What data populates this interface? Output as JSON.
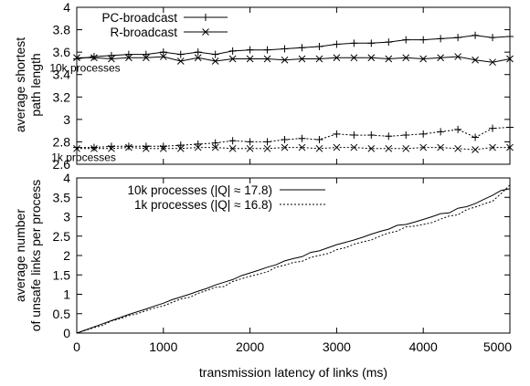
{
  "chart_data": [
    {
      "type": "line",
      "ylabel_lines": [
        "average shortest",
        "path length"
      ],
      "xlabel": "",
      "xlim": [
        0,
        5000
      ],
      "ylim": [
        2.6,
        4
      ],
      "yticks": [
        "4",
        "3.8",
        "3.6",
        "3.4",
        "3.2",
        "3",
        "2.8",
        "2.6"
      ],
      "ytick_values": [
        4,
        3.8,
        3.6,
        3.4,
        3.2,
        3,
        2.8,
        2.6
      ],
      "grid": false,
      "legend_position": "top-left",
      "legend": [
        {
          "label": "PC-broadcast",
          "marker": "plus",
          "style": "solid"
        },
        {
          "label": "R-broadcast",
          "marker": "cross",
          "style": "solid"
        }
      ],
      "annotations": [
        {
          "text": "10k processes",
          "x": 130,
          "y": 3.46
        },
        {
          "text": "1k processes",
          "x": 150,
          "y": 2.66
        }
      ],
      "x": [
        0,
        200,
        400,
        600,
        800,
        1000,
        1200,
        1400,
        1600,
        1800,
        2000,
        2200,
        2400,
        2600,
        2800,
        3000,
        3200,
        3400,
        3600,
        3800,
        4000,
        4200,
        4400,
        4600,
        4800,
        5000
      ],
      "series": [
        {
          "name": "PC-broadcast",
          "group": "10k processes",
          "marker": "plus",
          "dash": "solid",
          "values": [
            3.54,
            3.56,
            3.57,
            3.58,
            3.58,
            3.6,
            3.58,
            3.6,
            3.58,
            3.61,
            3.62,
            3.62,
            3.63,
            3.64,
            3.65,
            3.67,
            3.68,
            3.68,
            3.69,
            3.71,
            3.71,
            3.72,
            3.73,
            3.75,
            3.73,
            3.74
          ]
        },
        {
          "name": "R-broadcast",
          "group": "10k processes",
          "marker": "cross",
          "dash": "solid",
          "values": [
            3.55,
            3.55,
            3.54,
            3.55,
            3.55,
            3.56,
            3.52,
            3.55,
            3.52,
            3.54,
            3.54,
            3.54,
            3.53,
            3.54,
            3.54,
            3.55,
            3.55,
            3.55,
            3.54,
            3.55,
            3.54,
            3.55,
            3.56,
            3.53,
            3.51,
            3.54
          ]
        },
        {
          "name": "PC-broadcast",
          "group": "1k processes",
          "marker": "plus",
          "dash": "dotted",
          "values": [
            2.75,
            2.75,
            2.76,
            2.76,
            2.76,
            2.76,
            2.77,
            2.78,
            2.79,
            2.81,
            2.8,
            2.8,
            2.82,
            2.83,
            2.82,
            2.87,
            2.86,
            2.86,
            2.85,
            2.86,
            2.87,
            2.89,
            2.91,
            2.84,
            2.92,
            2.93
          ]
        },
        {
          "name": "R-broadcast",
          "group": "1k processes",
          "marker": "cross",
          "dash": "dotted",
          "values": [
            2.74,
            2.74,
            2.74,
            2.75,
            2.74,
            2.74,
            2.74,
            2.75,
            2.75,
            2.74,
            2.74,
            2.74,
            2.75,
            2.75,
            2.74,
            2.75,
            2.75,
            2.74,
            2.74,
            2.74,
            2.75,
            2.75,
            2.74,
            2.73,
            2.75,
            2.75
          ]
        }
      ]
    },
    {
      "type": "line",
      "ylabel_lines": [
        "average number",
        "of unsafe links per process"
      ],
      "xlabel": "transmission latency of links (ms)",
      "xlim": [
        0,
        5000
      ],
      "ylim": [
        0,
        4
      ],
      "xticks": [
        "0",
        "1000",
        "2000",
        "3000",
        "4000",
        "5000"
      ],
      "xtick_values": [
        0,
        1000,
        2000,
        3000,
        4000,
        5000
      ],
      "yticks": [
        "4",
        "3.5",
        "3",
        "2.5",
        "2",
        "1.5",
        "1",
        "0.5",
        "0"
      ],
      "ytick_values": [
        4,
        3.5,
        3,
        2.5,
        2,
        1.5,
        1,
        0.5,
        0
      ],
      "grid": false,
      "legend_position": "top-left",
      "legend": [
        {
          "label": "10k processes (|Q| ≈ 17.8)",
          "style": "solid"
        },
        {
          "label": "1k processes (|Q| ≈ 16.8)",
          "style": "dotted"
        }
      ],
      "x": [
        0,
        100,
        200,
        300,
        400,
        500,
        600,
        700,
        800,
        900,
        1000,
        1100,
        1200,
        1300,
        1400,
        1500,
        1600,
        1700,
        1800,
        1900,
        2000,
        2100,
        2200,
        2300,
        2400,
        2500,
        2600,
        2700,
        2800,
        2900,
        3000,
        3100,
        3200,
        3300,
        3400,
        3500,
        3600,
        3700,
        3800,
        3900,
        4000,
        4100,
        4200,
        4300,
        4400,
        4500,
        4600,
        4700,
        4800,
        4900,
        5000
      ],
      "series": [
        {
          "name": "10k processes (|Q| ≈ 17.8)",
          "dash": "solid",
          "values": [
            0.0,
            0.08,
            0.16,
            0.24,
            0.32,
            0.4,
            0.48,
            0.55,
            0.62,
            0.7,
            0.77,
            0.86,
            0.93,
            1.0,
            1.08,
            1.15,
            1.24,
            1.31,
            1.38,
            1.48,
            1.55,
            1.62,
            1.7,
            1.76,
            1.86,
            1.92,
            1.97,
            2.08,
            2.12,
            2.2,
            2.28,
            2.34,
            2.4,
            2.47,
            2.55,
            2.62,
            2.68,
            2.78,
            2.8,
            2.86,
            2.93,
            3.0,
            3.08,
            3.1,
            3.22,
            3.26,
            3.34,
            3.45,
            3.55,
            3.68,
            3.72
          ]
        },
        {
          "name": "1k processes (|Q| ≈ 16.8)",
          "dash": "dotted",
          "values": [
            0.0,
            0.07,
            0.14,
            0.2,
            0.31,
            0.37,
            0.45,
            0.5,
            0.58,
            0.65,
            0.7,
            0.79,
            0.88,
            0.92,
            1.02,
            1.1,
            1.18,
            1.2,
            1.33,
            1.4,
            1.46,
            1.52,
            1.58,
            1.7,
            1.75,
            1.82,
            1.85,
            1.95,
            2.0,
            2.05,
            2.15,
            2.2,
            2.29,
            2.35,
            2.4,
            2.5,
            2.58,
            2.63,
            2.74,
            2.76,
            2.8,
            2.85,
            2.94,
            3.02,
            3.05,
            3.18,
            3.25,
            3.33,
            3.4,
            3.6,
            3.82
          ]
        }
      ]
    }
  ]
}
